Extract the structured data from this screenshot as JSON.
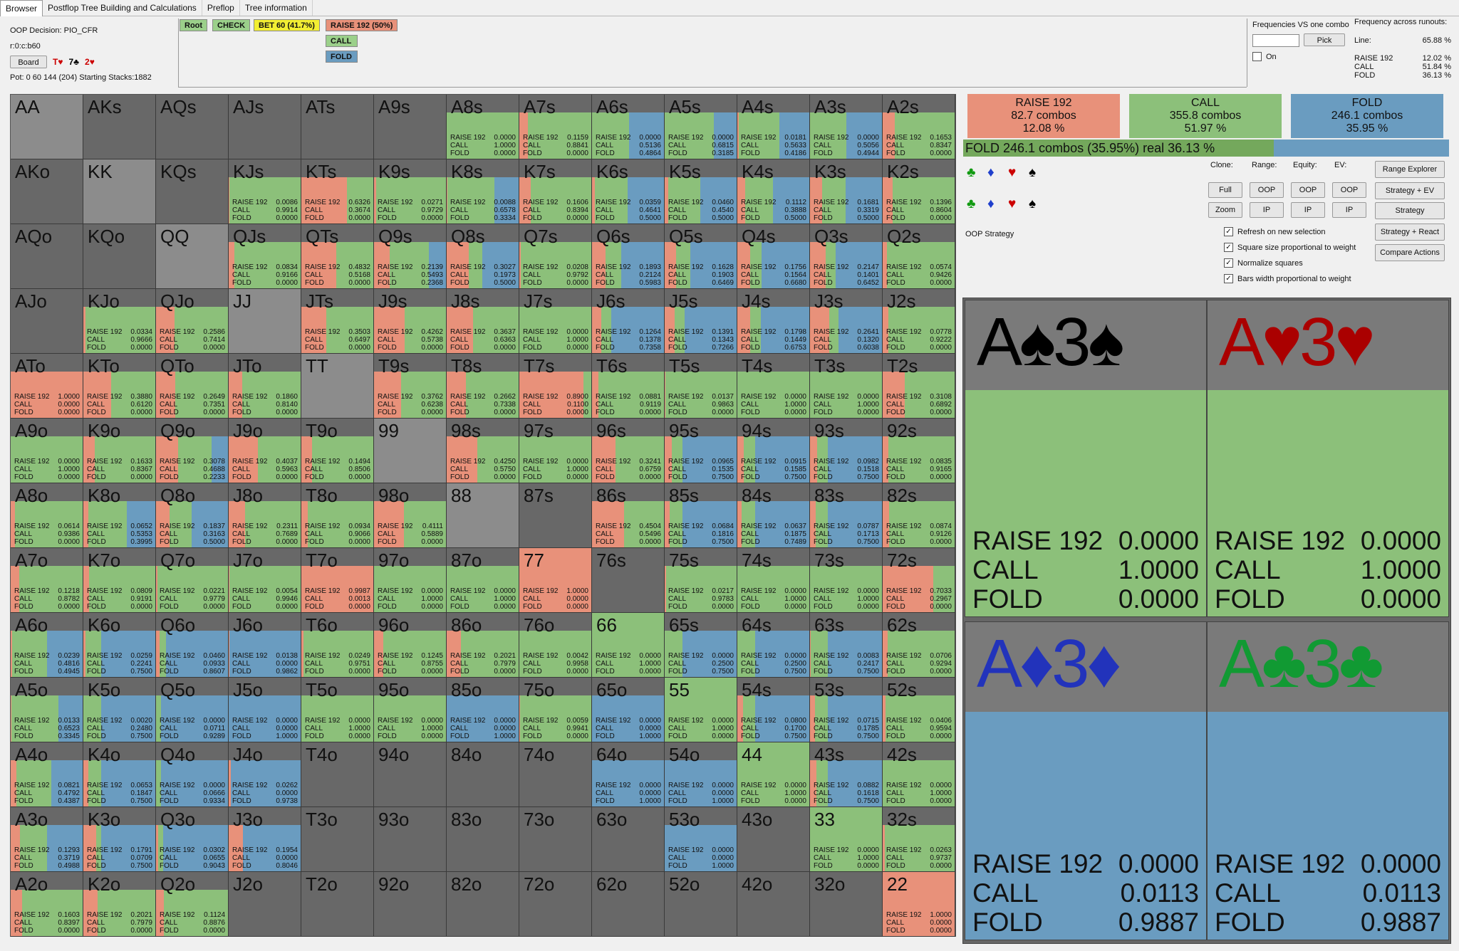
{
  "tabs": [
    "Browser",
    "Postflop Tree Building and Calculations",
    "Preflop",
    "Tree information"
  ],
  "info": {
    "decision": "OOP Decision:  PIO_CFR",
    "line": "r:0:c:b60",
    "board_button": "Board",
    "board_cards": [
      {
        "text": "T♥",
        "color": "#cc0000"
      },
      {
        "text": "7♣",
        "color": "#000000"
      },
      {
        "text": "2♥",
        "color": "#cc0000"
      }
    ],
    "pot": "Pot: 0 60 144 (204) Starting Stacks:1882"
  },
  "tree": {
    "root": "Root",
    "check": "CHECK",
    "bet": "BET 60 (41.7%)",
    "raise": "RAISE 192 (50%)",
    "call": "CALL",
    "fold": "FOLD"
  },
  "freq_panel": {
    "title": "Frequencies VS one combo",
    "pick": "Pick",
    "on_label": "On",
    "runouts_title": "Frequency across runouts:",
    "line_label": "Line:",
    "line_value": "65.88 %",
    "rows": [
      {
        "label": "RAISE 192",
        "value": "12.02 %"
      },
      {
        "label": "CALL",
        "value": "51.84 %"
      },
      {
        "label": "FOLD",
        "value": "36.13 %"
      }
    ]
  },
  "summary": [
    {
      "action": "RAISE 192",
      "combos": "82.7 combos",
      "pct": "12.08 %",
      "color": "#e8917a"
    },
    {
      "action": "CALL",
      "combos": "355.8 combos",
      "pct": "51.97 %",
      "color": "#8cc07a"
    },
    {
      "action": "FOLD",
      "combos": "246.1 combos",
      "pct": "35.95 %",
      "color": "#6a9cc0"
    }
  ],
  "fold_bar": {
    "text": "FOLD  246.1 combos (35.95%) real  36.13 %",
    "fold_fraction": 0.3613
  },
  "suit_rows": [
    [
      "♣",
      "♦",
      "♥",
      "♠"
    ],
    [
      "♣",
      "♦",
      "♥",
      "♠"
    ]
  ],
  "suit_colors": [
    "#119a11",
    "#1f3fcc",
    "#cc0000",
    "#000000"
  ],
  "controls": {
    "col_labels": [
      "Clone:",
      "Range:",
      "Equity:",
      "EV:"
    ],
    "buttons": [
      "Full",
      "OOP",
      "OOP",
      "OOP",
      "Zoom",
      "IP",
      "IP",
      "IP"
    ],
    "side_buttons": [
      "Range Explorer",
      "Strategy + EV",
      "Strategy",
      "Strategy + React",
      "Compare Actions"
    ],
    "oop_strategy": "OOP Strategy",
    "checkboxes": [
      "Refresh on new selection",
      "Square size proportional to weight",
      "Normalize squares",
      "Bars width proportional to weight"
    ]
  },
  "action_labels": [
    "RAISE 192",
    "CALL",
    "FOLD"
  ],
  "colors": {
    "raise": "#e8917a",
    "call": "#8cc07a",
    "fold": "#6a9cc0",
    "empty": "#686868",
    "pair_empty": "#8c8c8c"
  },
  "hands": [
    {
      "n": "AA",
      "s": null
    },
    {
      "n": "AKs",
      "s": null
    },
    {
      "n": "AQs",
      "s": null
    },
    {
      "n": "AJs",
      "s": null
    },
    {
      "n": "ATs",
      "s": null
    },
    {
      "n": "A9s",
      "s": null
    },
    {
      "n": "A8s",
      "s": [
        "0.0000",
        "1.0000",
        "0.0000"
      ]
    },
    {
      "n": "A7s",
      "s": [
        "0.1159",
        "0.8841",
        "0.0000"
      ]
    },
    {
      "n": "A6s",
      "s": [
        "0.0000",
        "0.5136",
        "0.4864"
      ]
    },
    {
      "n": "A5s",
      "s": [
        "0.0000",
        "0.6815",
        "0.3185"
      ]
    },
    {
      "n": "A4s",
      "s": [
        "0.0181",
        "0.5633",
        "0.4186"
      ]
    },
    {
      "n": "A3s",
      "s": [
        "0.0000",
        "0.5056",
        "0.4944"
      ]
    },
    {
      "n": "A2s",
      "s": [
        "0.1653",
        "0.8347",
        "0.0000"
      ]
    },
    {
      "n": "AKo",
      "s": null
    },
    {
      "n": "KK",
      "s": null
    },
    {
      "n": "KQs",
      "s": null
    },
    {
      "n": "KJs",
      "s": [
        "0.0086",
        "0.9914",
        "0.0000"
      ]
    },
    {
      "n": "KTs",
      "s": [
        "0.6326",
        "0.3674",
        "0.0000"
      ]
    },
    {
      "n": "K9s",
      "s": [
        "0.0271",
        "0.9729",
        "0.0000"
      ]
    },
    {
      "n": "K8s",
      "s": [
        "0.0088",
        "0.6578",
        "0.3334"
      ]
    },
    {
      "n": "K7s",
      "s": [
        "0.1606",
        "0.8394",
        "0.0000"
      ]
    },
    {
      "n": "K6s",
      "s": [
        "0.0359",
        "0.4641",
        "0.5000"
      ]
    },
    {
      "n": "K5s",
      "s": [
        "0.0460",
        "0.4540",
        "0.5000"
      ]
    },
    {
      "n": "K4s",
      "s": [
        "0.1112",
        "0.3888",
        "0.5000"
      ]
    },
    {
      "n": "K3s",
      "s": [
        "0.1681",
        "0.3319",
        "0.5000"
      ]
    },
    {
      "n": "K2s",
      "s": [
        "0.1396",
        "0.8604",
        "0.0000"
      ]
    },
    {
      "n": "AQo",
      "s": null
    },
    {
      "n": "KQo",
      "s": null
    },
    {
      "n": "QQ",
      "s": null
    },
    {
      "n": "QJs",
      "s": [
        "0.0834",
        "0.9166",
        "0.0000"
      ]
    },
    {
      "n": "QTs",
      "s": [
        "0.4832",
        "0.5168",
        "0.0000"
      ]
    },
    {
      "n": "Q9s",
      "s": [
        "0.2139",
        "0.5493",
        "0.2368"
      ]
    },
    {
      "n": "Q8s",
      "s": [
        "0.3027",
        "0.1973",
        "0.5000"
      ]
    },
    {
      "n": "Q7s",
      "s": [
        "0.0208",
        "0.9792",
        "0.0000"
      ]
    },
    {
      "n": "Q6s",
      "s": [
        "0.1893",
        "0.2124",
        "0.5983"
      ]
    },
    {
      "n": "Q5s",
      "s": [
        "0.1628",
        "0.1903",
        "0.6469"
      ]
    },
    {
      "n": "Q4s",
      "s": [
        "0.1756",
        "0.1564",
        "0.6680"
      ]
    },
    {
      "n": "Q3s",
      "s": [
        "0.2147",
        "0.1401",
        "0.6452"
      ]
    },
    {
      "n": "Q2s",
      "s": [
        "0.0574",
        "0.9426",
        "0.0000"
      ]
    },
    {
      "n": "AJo",
      "s": null
    },
    {
      "n": "KJo",
      "s": [
        "0.0334",
        "0.9666",
        "0.0000"
      ]
    },
    {
      "n": "QJo",
      "s": [
        "0.2586",
        "0.7414",
        "0.0000"
      ]
    },
    {
      "n": "JJ",
      "s": null
    },
    {
      "n": "JTs",
      "s": [
        "0.3503",
        "0.6497",
        "0.0000"
      ]
    },
    {
      "n": "J9s",
      "s": [
        "0.4262",
        "0.5738",
        "0.0000"
      ]
    },
    {
      "n": "J8s",
      "s": [
        "0.3637",
        "0.6363",
        "0.0000"
      ]
    },
    {
      "n": "J7s",
      "s": [
        "0.0000",
        "1.0000",
        "0.0000"
      ]
    },
    {
      "n": "J6s",
      "s": [
        "0.1264",
        "0.1378",
        "0.7358"
      ]
    },
    {
      "n": "J5s",
      "s": [
        "0.1391",
        "0.1343",
        "0.7266"
      ]
    },
    {
      "n": "J4s",
      "s": [
        "0.1798",
        "0.1449",
        "0.6753"
      ]
    },
    {
      "n": "J3s",
      "s": [
        "0.2641",
        "0.1320",
        "0.6038"
      ]
    },
    {
      "n": "J2s",
      "s": [
        "0.0778",
        "0.9222",
        "0.0000"
      ]
    },
    {
      "n": "ATo",
      "s": [
        "1.0000",
        "0.0000",
        "0.0000"
      ]
    },
    {
      "n": "KTo",
      "s": [
        "0.3880",
        "0.6120",
        "0.0000"
      ]
    },
    {
      "n": "QTo",
      "s": [
        "0.2649",
        "0.7351",
        "0.0000"
      ]
    },
    {
      "n": "JTo",
      "s": [
        "0.1860",
        "0.8140",
        "0.0000"
      ]
    },
    {
      "n": "TT",
      "s": null
    },
    {
      "n": "T9s",
      "s": [
        "0.3762",
        "0.6238",
        "0.0000"
      ]
    },
    {
      "n": "T8s",
      "s": [
        "0.2662",
        "0.7338",
        "0.0000"
      ]
    },
    {
      "n": "T7s",
      "s": [
        "0.8900",
        "0.1100",
        "0.0000"
      ]
    },
    {
      "n": "T6s",
      "s": [
        "0.0881",
        "0.9119",
        "0.0000"
      ]
    },
    {
      "n": "T5s",
      "s": [
        "0.0137",
        "0.9863",
        "0.0000"
      ]
    },
    {
      "n": "T4s",
      "s": [
        "0.0000",
        "1.0000",
        "0.0000"
      ]
    },
    {
      "n": "T3s",
      "s": [
        "0.0000",
        "1.0000",
        "0.0000"
      ]
    },
    {
      "n": "T2s",
      "s": [
        "0.3108",
        "0.6892",
        "0.0000"
      ]
    },
    {
      "n": "A9o",
      "s": [
        "0.0000",
        "1.0000",
        "0.0000"
      ]
    },
    {
      "n": "K9o",
      "s": [
        "0.1633",
        "0.8367",
        "0.0000"
      ]
    },
    {
      "n": "Q9o",
      "s": [
        "0.3078",
        "0.4688",
        "0.2233"
      ]
    },
    {
      "n": "J9o",
      "s": [
        "0.4037",
        "0.5963",
        "0.0000"
      ]
    },
    {
      "n": "T9o",
      "s": [
        "0.1494",
        "0.8506",
        "0.0000"
      ]
    },
    {
      "n": "99",
      "s": null
    },
    {
      "n": "98s",
      "s": [
        "0.4250",
        "0.5750",
        "0.0000"
      ]
    },
    {
      "n": "97s",
      "s": [
        "0.0000",
        "1.0000",
        "0.0000"
      ]
    },
    {
      "n": "96s",
      "s": [
        "0.3241",
        "0.6759",
        "0.0000"
      ]
    },
    {
      "n": "95s",
      "s": [
        "0.0965",
        "0.1535",
        "0.7500"
      ]
    },
    {
      "n": "94s",
      "s": [
        "0.0915",
        "0.1585",
        "0.7500"
      ]
    },
    {
      "n": "93s",
      "s": [
        "0.0982",
        "0.1518",
        "0.7500"
      ]
    },
    {
      "n": "92s",
      "s": [
        "0.0835",
        "0.9165",
        "0.0000"
      ]
    },
    {
      "n": "A8o",
      "s": [
        "0.0614",
        "0.9386",
        "0.0000"
      ]
    },
    {
      "n": "K8o",
      "s": [
        "0.0652",
        "0.5353",
        "0.3995"
      ]
    },
    {
      "n": "Q8o",
      "s": [
        "0.1837",
        "0.3163",
        "0.5000"
      ]
    },
    {
      "n": "J8o",
      "s": [
        "0.2311",
        "0.7689",
        "0.0000"
      ]
    },
    {
      "n": "T8o",
      "s": [
        "0.0934",
        "0.9066",
        "0.0000"
      ]
    },
    {
      "n": "98o",
      "s": [
        "0.4111",
        "0.5889",
        "0.0000"
      ]
    },
    {
      "n": "88",
      "s": null
    },
    {
      "n": "87s",
      "s": null
    },
    {
      "n": "86s",
      "s": [
        "0.4504",
        "0.5496",
        "0.0000"
      ]
    },
    {
      "n": "85s",
      "s": [
        "0.0684",
        "0.1816",
        "0.7500"
      ]
    },
    {
      "n": "84s",
      "s": [
        "0.0637",
        "0.1875",
        "0.7489"
      ]
    },
    {
      "n": "83s",
      "s": [
        "0.0787",
        "0.1713",
        "0.7500"
      ]
    },
    {
      "n": "82s",
      "s": [
        "0.0874",
        "0.9126",
        "0.0000"
      ]
    },
    {
      "n": "A7o",
      "s": [
        "0.1218",
        "0.8782",
        "0.0000"
      ]
    },
    {
      "n": "K7o",
      "s": [
        "0.0809",
        "0.9191",
        "0.0000"
      ]
    },
    {
      "n": "Q7o",
      "s": [
        "0.0221",
        "0.9779",
        "0.0000"
      ]
    },
    {
      "n": "J7o",
      "s": [
        "0.0054",
        "0.9946",
        "0.0000"
      ]
    },
    {
      "n": "T7o",
      "s": [
        "0.9987",
        "0.0013",
        "0.0000"
      ]
    },
    {
      "n": "97o",
      "s": [
        "0.0000",
        "1.0000",
        "0.0000"
      ]
    },
    {
      "n": "87o",
      "s": [
        "0.0000",
        "1.0000",
        "0.0000"
      ]
    },
    {
      "n": "77",
      "s": [
        "1.0000",
        "0.0000",
        "0.0000"
      ]
    },
    {
      "n": "76s",
      "s": null
    },
    {
      "n": "75s",
      "s": [
        "0.0217",
        "0.9783",
        "0.0000"
      ]
    },
    {
      "n": "74s",
      "s": [
        "0.0000",
        "1.0000",
        "0.0000"
      ]
    },
    {
      "n": "73s",
      "s": [
        "0.0000",
        "1.0000",
        "0.0000"
      ]
    },
    {
      "n": "72s",
      "s": [
        "0.7033",
        "0.2967",
        "0.0000"
      ]
    },
    {
      "n": "A6o",
      "s": [
        "0.0239",
        "0.4816",
        "0.4945"
      ]
    },
    {
      "n": "K6o",
      "s": [
        "0.0259",
        "0.2241",
        "0.7500"
      ]
    },
    {
      "n": "Q6o",
      "s": [
        "0.0460",
        "0.0933",
        "0.8607"
      ]
    },
    {
      "n": "J6o",
      "s": [
        "0.0138",
        "0.0000",
        "0.9862"
      ]
    },
    {
      "n": "T6o",
      "s": [
        "0.0249",
        "0.9751",
        "0.0000"
      ]
    },
    {
      "n": "96o",
      "s": [
        "0.1245",
        "0.8755",
        "0.0000"
      ]
    },
    {
      "n": "86o",
      "s": [
        "0.2021",
        "0.7979",
        "0.0000"
      ]
    },
    {
      "n": "76o",
      "s": [
        "0.0042",
        "0.9958",
        "0.0000"
      ]
    },
    {
      "n": "66",
      "s": [
        "0.0000",
        "1.0000",
        "0.0000"
      ]
    },
    {
      "n": "65s",
      "s": [
        "0.0000",
        "0.2500",
        "0.7500"
      ]
    },
    {
      "n": "64s",
      "s": [
        "0.0000",
        "0.2500",
        "0.7500"
      ]
    },
    {
      "n": "63s",
      "s": [
        "0.0083",
        "0.2417",
        "0.7500"
      ]
    },
    {
      "n": "62s",
      "s": [
        "0.0706",
        "0.9294",
        "0.0000"
      ]
    },
    {
      "n": "A5o",
      "s": [
        "0.0133",
        "0.6523",
        "0.3345"
      ]
    },
    {
      "n": "K5o",
      "s": [
        "0.0020",
        "0.2480",
        "0.7500"
      ]
    },
    {
      "n": "Q5o",
      "s": [
        "0.0000",
        "0.0711",
        "0.9289"
      ]
    },
    {
      "n": "J5o",
      "s": [
        "0.0000",
        "0.0000",
        "1.0000"
      ]
    },
    {
      "n": "T5o",
      "s": [
        "0.0000",
        "1.0000",
        "0.0000"
      ]
    },
    {
      "n": "95o",
      "s": [
        "0.0000",
        "1.0000",
        "0.0000"
      ]
    },
    {
      "n": "85o",
      "s": [
        "0.0000",
        "0.0000",
        "1.0000"
      ]
    },
    {
      "n": "75o",
      "s": [
        "0.0059",
        "0.9941",
        "0.0000"
      ]
    },
    {
      "n": "65o",
      "s": [
        "0.0000",
        "0.0000",
        "1.0000"
      ]
    },
    {
      "n": "55",
      "s": [
        "0.0000",
        "1.0000",
        "0.0000"
      ]
    },
    {
      "n": "54s",
      "s": [
        "0.0800",
        "0.1700",
        "0.7500"
      ]
    },
    {
      "n": "53s",
      "s": [
        "0.0715",
        "0.1785",
        "0.7500"
      ]
    },
    {
      "n": "52s",
      "s": [
        "0.0406",
        "0.9594",
        "0.0000"
      ]
    },
    {
      "n": "A4o",
      "s": [
        "0.0821",
        "0.4792",
        "0.4387"
      ]
    },
    {
      "n": "K4o",
      "s": [
        "0.0653",
        "0.1847",
        "0.7500"
      ]
    },
    {
      "n": "Q4o",
      "s": [
        "0.0000",
        "0.0666",
        "0.9334"
      ]
    },
    {
      "n": "J4o",
      "s": [
        "0.0262",
        "0.0000",
        "0.9738"
      ]
    },
    {
      "n": "T4o",
      "s": null
    },
    {
      "n": "94o",
      "s": null
    },
    {
      "n": "84o",
      "s": null
    },
    {
      "n": "74o",
      "s": null
    },
    {
      "n": "64o",
      "s": [
        "0.0000",
        "0.0000",
        "1.0000"
      ]
    },
    {
      "n": "54o",
      "s": [
        "0.0000",
        "0.0000",
        "1.0000"
      ]
    },
    {
      "n": "44",
      "s": [
        "0.0000",
        "1.0000",
        "0.0000"
      ]
    },
    {
      "n": "43s",
      "s": [
        "0.0882",
        "0.1618",
        "0.7500"
      ]
    },
    {
      "n": "42s",
      "s": [
        "0.0000",
        "1.0000",
        "0.0000"
      ]
    },
    {
      "n": "A3o",
      "s": [
        "0.1293",
        "0.3719",
        "0.4988"
      ]
    },
    {
      "n": "K3o",
      "s": [
        "0.1791",
        "0.0709",
        "0.7500"
      ]
    },
    {
      "n": "Q3o",
      "s": [
        "0.0302",
        "0.0655",
        "0.9043"
      ]
    },
    {
      "n": "J3o",
      "s": [
        "0.1954",
        "0.0000",
        "0.8046"
      ]
    },
    {
      "n": "T3o",
      "s": null
    },
    {
      "n": "93o",
      "s": null
    },
    {
      "n": "83o",
      "s": null
    },
    {
      "n": "73o",
      "s": null
    },
    {
      "n": "63o",
      "s": null
    },
    {
      "n": "53o",
      "s": [
        "0.0000",
        "0.0000",
        "1.0000"
      ]
    },
    {
      "n": "43o",
      "s": null
    },
    {
      "n": "33",
      "s": [
        "0.0000",
        "1.0000",
        "0.0000"
      ]
    },
    {
      "n": "32s",
      "s": [
        "0.0263",
        "0.9737",
        "0.0000"
      ]
    },
    {
      "n": "A2o",
      "s": [
        "0.1603",
        "0.8397",
        "0.0000"
      ]
    },
    {
      "n": "K2o",
      "s": [
        "0.2021",
        "0.7979",
        "0.0000"
      ]
    },
    {
      "n": "Q2o",
      "s": [
        "0.1124",
        "0.8876",
        "0.0000"
      ]
    },
    {
      "n": "J2o",
      "s": null
    },
    {
      "n": "T2o",
      "s": null
    },
    {
      "n": "92o",
      "s": null
    },
    {
      "n": "82o",
      "s": null
    },
    {
      "n": "72o",
      "s": null
    },
    {
      "n": "62o",
      "s": null
    },
    {
      "n": "52o",
      "s": null
    },
    {
      "n": "42o",
      "s": null
    },
    {
      "n": "32o",
      "s": null
    },
    {
      "n": "22",
      "s": [
        "1.0000",
        "0.0000",
        "0.0000"
      ]
    }
  ],
  "combos": [
    {
      "rank": "A",
      "suit": "♠",
      "rank2": "3",
      "color": "#000000",
      "values": [
        "0.0000",
        "1.0000",
        "0.0000"
      ]
    },
    {
      "rank": "A",
      "suit": "♥",
      "rank2": "3",
      "color": "#aa0000",
      "values": [
        "0.0000",
        "1.0000",
        "0.0000"
      ]
    },
    {
      "rank": "A",
      "suit": "♦",
      "rank2": "3",
      "color": "#2233bb",
      "values": [
        "0.0000",
        "0.0113",
        "0.9887"
      ]
    },
    {
      "rank": "A",
      "suit": "♣",
      "rank2": "3",
      "color": "#119a33",
      "values": [
        "0.0000",
        "0.0113",
        "0.9887"
      ]
    }
  ]
}
